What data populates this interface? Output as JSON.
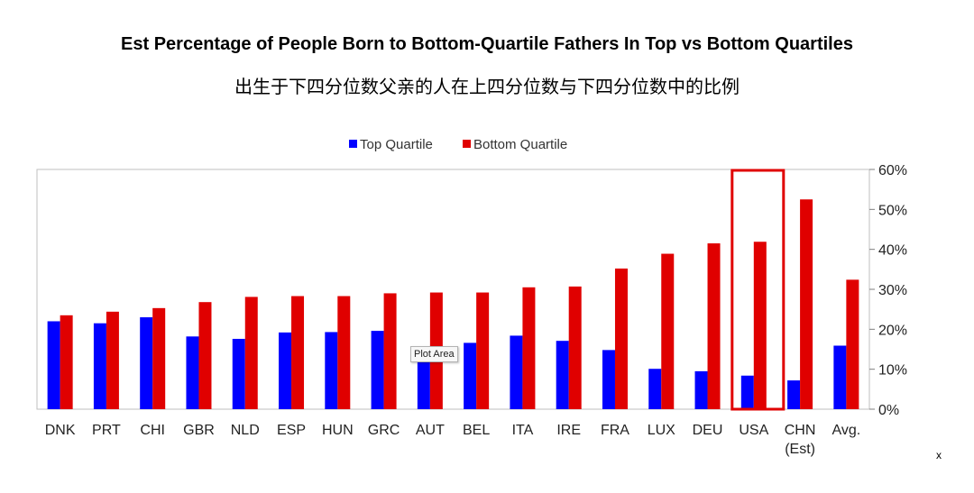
{
  "chart_data": {
    "type": "bar",
    "title": "Est Percentage of People Born to Bottom-Quartile Fathers In Top vs Bottom Quartiles",
    "subtitle": "出生于下四分位数父亲的人在上四分位数与下四分位数中的比例",
    "categories": [
      "DNK",
      "PRT",
      "CHI",
      "GBR",
      "NLD",
      "ESP",
      "HUN",
      "GRC",
      "AUT",
      "BEL",
      "ITA",
      "IRE",
      "FRA",
      "LUX",
      "DEU",
      "USA",
      "CHN\n(Est)",
      "Avg."
    ],
    "series": [
      {
        "name": "Top Quartile",
        "color": "#0000ff",
        "values": [
          22.0,
          21.5,
          23.0,
          18.2,
          17.6,
          19.2,
          19.3,
          19.6,
          14.4,
          16.6,
          18.4,
          17.1,
          14.8,
          10.1,
          9.5,
          8.4,
          7.2,
          15.9
        ]
      },
      {
        "name": "Bottom Quartile",
        "color": "#e00000",
        "values": [
          23.5,
          24.4,
          25.3,
          26.8,
          28.1,
          28.3,
          28.3,
          29.0,
          29.2,
          29.2,
          30.5,
          30.7,
          35.2,
          38.9,
          41.5,
          41.9,
          52.5,
          32.4
        ]
      }
    ],
    "y_axis": {
      "position": "right",
      "ylim": [
        0,
        60
      ],
      "ticks": [
        "0%",
        "10%",
        "20%",
        "30%",
        "40%",
        "50%",
        "60%"
      ]
    },
    "legend_position": "top-center",
    "grid": false,
    "highlight": {
      "category": "USA",
      "color": "#e00000"
    }
  },
  "overlay": {
    "tooltip": "Plot Area",
    "close_mark": "x"
  }
}
